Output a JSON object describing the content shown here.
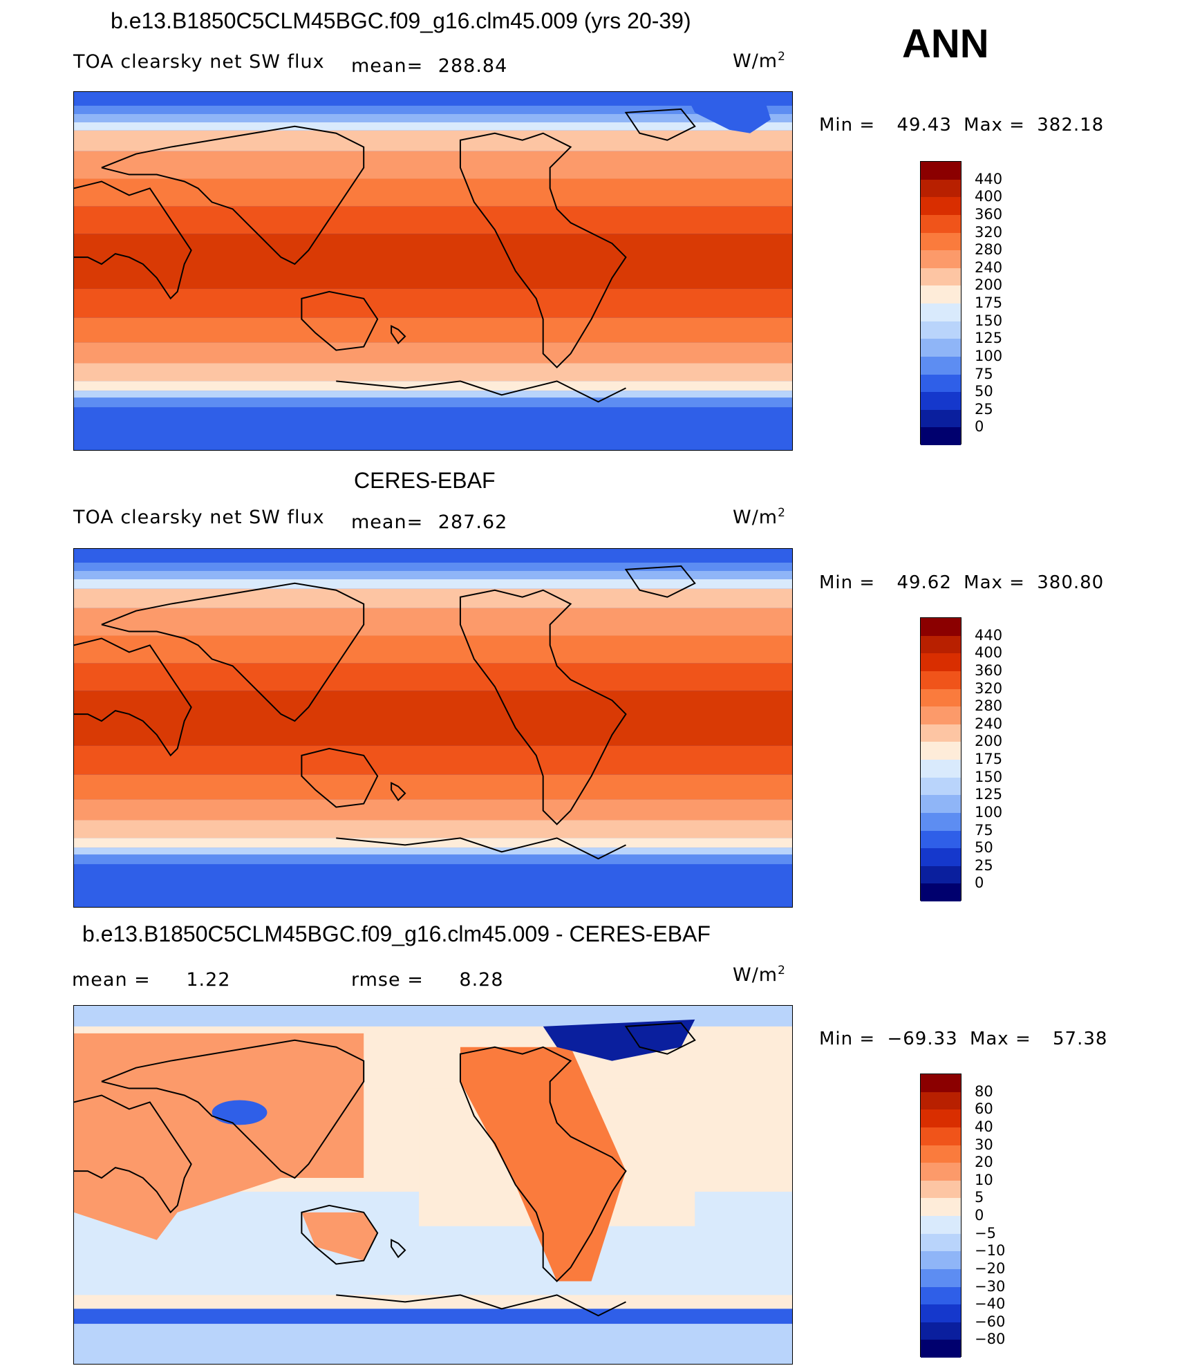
{
  "season": "ANN",
  "units": "W/m",
  "units_sup": "2",
  "panels": [
    {
      "title": "b.e13.B1850C5CLM45BGC.f09_g16.clm45.009 (yrs 20-39)",
      "left_label": "TOA clearsky net SW flux",
      "stat1": "mean=",
      "stat1_value": "288.84",
      "min_label": "Min =",
      "min_value": "49.43",
      "max_label": "Max =",
      "max_value": "382.18",
      "colorbar": [
        "440",
        "400",
        "360",
        "320",
        "280",
        "240",
        "200",
        "175",
        "150",
        "125",
        "100",
        "75",
        "50",
        "25",
        "0"
      ],
      "colors": [
        "#8b0000",
        "#b82000",
        "#d92e00",
        "#f0541a",
        "#fa7b3d",
        "#fc9a6a",
        "#fdc5a3",
        "#feecd9",
        "#d9eafc",
        "#b9d4fb",
        "#8fb5f7",
        "#5d8df2",
        "#2f5fe8",
        "#1538cc",
        "#0a1f9e",
        "#00006e"
      ]
    },
    {
      "title": "CERES-EBAF",
      "left_label": "TOA clearsky net SW flux",
      "stat1": "mean=",
      "stat1_value": "287.62",
      "min_label": "Min =",
      "min_value": "49.62",
      "max_label": "Max =",
      "max_value": "380.80",
      "colorbar": [
        "440",
        "400",
        "360",
        "320",
        "280",
        "240",
        "200",
        "175",
        "150",
        "125",
        "100",
        "75",
        "50",
        "25",
        "0"
      ],
      "colors": [
        "#8b0000",
        "#b82000",
        "#d92e00",
        "#f0541a",
        "#fa7b3d",
        "#fc9a6a",
        "#fdc5a3",
        "#feecd9",
        "#d9eafc",
        "#b9d4fb",
        "#8fb5f7",
        "#5d8df2",
        "#2f5fe8",
        "#1538cc",
        "#0a1f9e",
        "#00006e"
      ]
    },
    {
      "title": "b.e13.B1850C5CLM45BGC.f09_g16.clm45.009 - CERES-EBAF",
      "left_label": "mean =",
      "left_value": "1.22",
      "stat1": "rmse =",
      "stat1_value": "8.28",
      "min_label": "Min =",
      "min_value": "−69.33",
      "max_label": "Max =",
      "max_value": "57.38",
      "colorbar": [
        "80",
        "60",
        "40",
        "30",
        "20",
        "10",
        "5",
        "0",
        "−5",
        "−10",
        "−20",
        "−30",
        "−40",
        "−60",
        "−80"
      ],
      "colors": [
        "#8b0000",
        "#b82000",
        "#d92e00",
        "#f0541a",
        "#fa7b3d",
        "#fc9a6a",
        "#fdc5a3",
        "#feecd9",
        "#d9eafc",
        "#b9d4fb",
        "#8fb5f7",
        "#5d8df2",
        "#2f5fe8",
        "#1538cc",
        "#0a1f9e",
        "#00006e"
      ]
    }
  ]
}
